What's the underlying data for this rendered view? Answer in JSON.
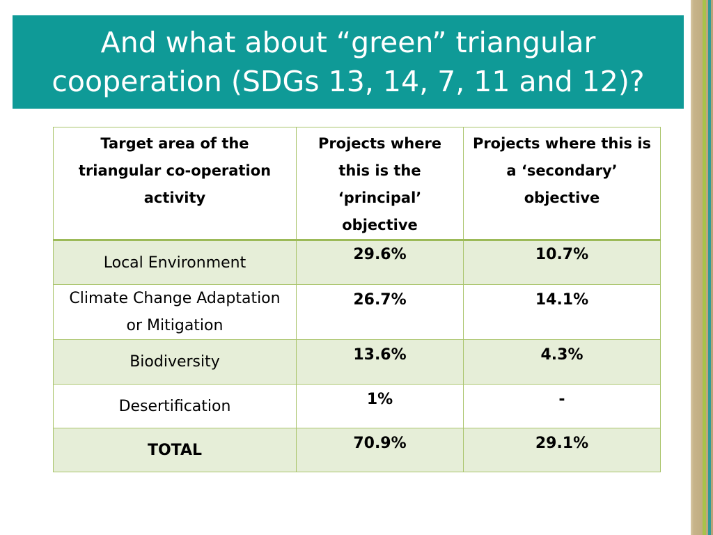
{
  "slide": {
    "title": "And what about “green” triangular cooperation (SDGs 13, 14, 7, 11 and 12)?"
  },
  "table": {
    "headers": [
      "Target area of the triangular co-operation activity",
      "Projects where this is the ‘principal’ objective",
      "Projects where this is a ‘secondary’ objective"
    ],
    "rows": [
      {
        "area": "Local Environment",
        "principal": "29.6%",
        "secondary": "10.7%"
      },
      {
        "area": "Climate Change Adaptation or Mitigation",
        "principal": "26.7%",
        "secondary": "14.1%"
      },
      {
        "area": "Biodiversity",
        "principal": "13.6%",
        "secondary": "4.3%"
      },
      {
        "area": "Desertification",
        "principal": "1%",
        "secondary": "-"
      },
      {
        "area": "TOTAL",
        "principal": "70.9%",
        "secondary": "29.1%"
      }
    ]
  },
  "colors": {
    "title_band": "#0f9a97",
    "row_shade": "#e6eed8",
    "table_border": "#a9c46a"
  }
}
